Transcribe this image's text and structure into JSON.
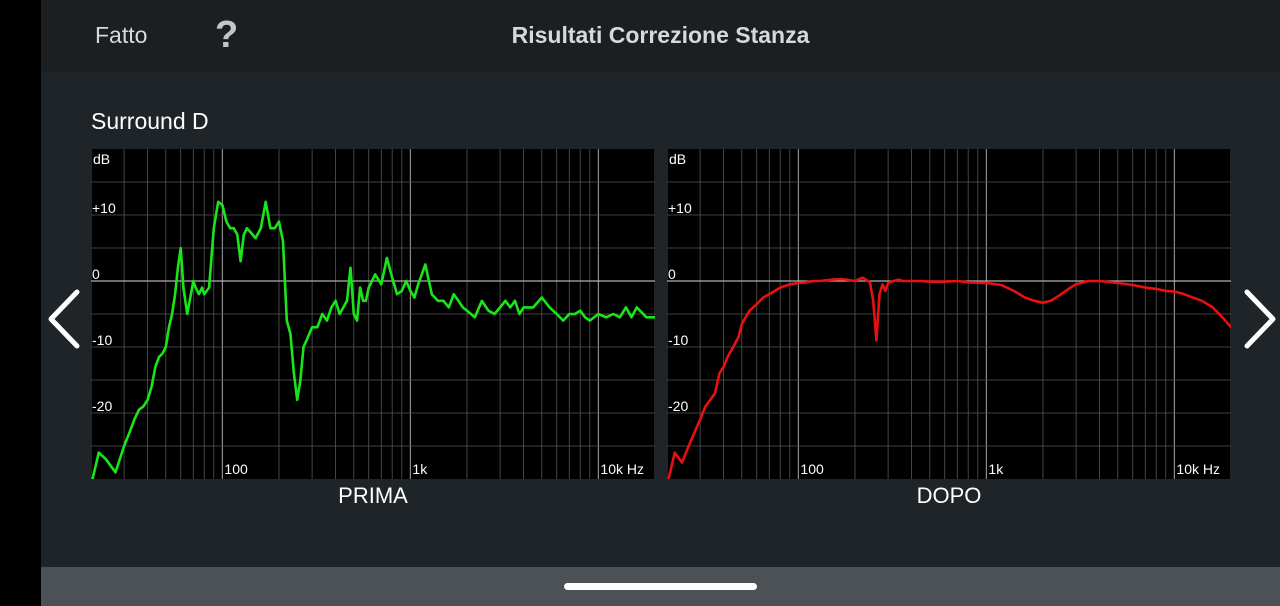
{
  "header": {
    "done_label": "Fatto",
    "help_label": "?",
    "title": "Risultati Correzione Stanza"
  },
  "speaker_name": "Surround D",
  "navigation": {
    "prev_icon": "chevron-left-icon",
    "next_icon": "chevron-right-icon"
  },
  "colors": {
    "background": "#1f2428",
    "header": "#1b1f22",
    "chart_background": "#000000",
    "before_curve": "#19e619",
    "after_curve": "#e81010",
    "grid": "#555555"
  },
  "chart_data": [
    {
      "type": "line",
      "title": "PRIMA",
      "xlabel": "",
      "ylabel": "dB",
      "x_scale": "log",
      "xlim": [
        20,
        20000
      ],
      "ylim": [
        -30,
        20
      ],
      "grid": true,
      "y_ticks": [
        {
          "value": 10,
          "label": "+10"
        },
        {
          "value": 0,
          "label": "0"
        },
        {
          "value": -10,
          "label": "-10"
        },
        {
          "value": -20,
          "label": "-20"
        }
      ],
      "x_ticks": [
        {
          "value": 100,
          "label": "100"
        },
        {
          "value": 1000,
          "label": "1k"
        },
        {
          "value": 10000,
          "label": "10k Hz"
        }
      ],
      "series": [
        {
          "color": "#19e619",
          "x": [
            20,
            22,
            24,
            27,
            30,
            32,
            34,
            36,
            38,
            40,
            42,
            44,
            46,
            48,
            50,
            52,
            54,
            56,
            58,
            60,
            62,
            65,
            68,
            70,
            72,
            75,
            78,
            80,
            85,
            90,
            95,
            100,
            105,
            110,
            115,
            120,
            125,
            130,
            135,
            140,
            150,
            160,
            170,
            180,
            190,
            200,
            210,
            220,
            230,
            240,
            250,
            260,
            270,
            280,
            300,
            320,
            340,
            360,
            380,
            400,
            420,
            440,
            460,
            480,
            500,
            520,
            540,
            560,
            580,
            600,
            650,
            700,
            750,
            800,
            850,
            900,
            950,
            1000,
            1050,
            1100,
            1150,
            1200,
            1300,
            1400,
            1500,
            1600,
            1700,
            1800,
            1900,
            2000,
            2200,
            2400,
            2600,
            2800,
            3000,
            3200,
            3400,
            3600,
            3800,
            4000,
            4500,
            5000,
            5500,
            6000,
            6500,
            7000,
            7500,
            8000,
            8500,
            9000,
            10000,
            11000,
            12000,
            13000,
            14000,
            15000,
            16000,
            18000,
            20000
          ],
          "y": [
            -31,
            -26,
            -27,
            -29,
            -25,
            -23,
            -21,
            -19.5,
            -19,
            -18,
            -16,
            -13,
            -11.5,
            -11,
            -10,
            -7,
            -5,
            -2,
            2,
            5,
            -1,
            -5,
            -2,
            0,
            -1,
            -2,
            -1,
            -2,
            -1,
            8,
            12,
            11.5,
            9,
            8,
            8,
            7,
            3,
            7,
            8,
            7.5,
            6.5,
            8,
            12,
            8,
            8,
            9,
            6,
            -6,
            -8,
            -14,
            -18,
            -15,
            -10,
            -9,
            -7,
            -7,
            -5,
            -6,
            -4,
            -3,
            -5,
            -4,
            -3,
            2,
            -5,
            -6,
            -1,
            -3,
            -3,
            -1,
            1,
            -0.5,
            3.5,
            0.5,
            -2,
            -1.5,
            0,
            -1.5,
            -2.5,
            -0.5,
            1,
            2.5,
            -2,
            -3,
            -3,
            -4,
            -2,
            -3,
            -4,
            -4.5,
            -5.5,
            -3,
            -4.5,
            -5,
            -4,
            -3,
            -4,
            -3,
            -5,
            -4,
            -4,
            -2.5,
            -4,
            -5,
            -6,
            -5,
            -5,
            -4.5,
            -5.5,
            -6,
            -5,
            -5.5,
            -5,
            -5.5,
            -4,
            -5.5,
            -4,
            -5.5,
            -5.5
          ]
        }
      ]
    },
    {
      "type": "line",
      "title": "DOPO",
      "xlabel": "",
      "ylabel": "dB",
      "x_scale": "log",
      "xlim": [
        20,
        20000
      ],
      "ylim": [
        -30,
        20
      ],
      "grid": true,
      "y_ticks": [
        {
          "value": 10,
          "label": "+10"
        },
        {
          "value": 0,
          "label": "0"
        },
        {
          "value": -10,
          "label": "-10"
        },
        {
          "value": -20,
          "label": "-20"
        }
      ],
      "x_ticks": [
        {
          "value": 100,
          "label": "100"
        },
        {
          "value": 1000,
          "label": "1k"
        },
        {
          "value": 10000,
          "label": "10k Hz"
        }
      ],
      "series": [
        {
          "color": "#e81010",
          "x": [
            20,
            22,
            24,
            27,
            30,
            32,
            34,
            36,
            38,
            40,
            42,
            45,
            48,
            50,
            55,
            60,
            65,
            70,
            75,
            80,
            90,
            100,
            110,
            120,
            130,
            150,
            170,
            200,
            220,
            240,
            250,
            260,
            270,
            280,
            290,
            300,
            320,
            340,
            360,
            400,
            450,
            500,
            600,
            700,
            800,
            1000,
            1200,
            1400,
            1600,
            1800,
            2000,
            2200,
            2500,
            2800,
            3000,
            3500,
            4000,
            5000,
            6000,
            7000,
            8000,
            9000,
            10000,
            11000,
            12000,
            14000,
            16000,
            18000,
            20000
          ],
          "y": [
            -31,
            -26,
            -27.5,
            -24,
            -21,
            -19,
            -18,
            -17,
            -14,
            -13,
            -11.5,
            -10,
            -8.5,
            -6.5,
            -4.5,
            -3.5,
            -2.5,
            -2,
            -1.5,
            -1,
            -0.5,
            -0.3,
            -0.2,
            0,
            0,
            0.2,
            0.3,
            0,
            0.5,
            -0.2,
            -3,
            -9,
            -2,
            -0.5,
            -1.5,
            -0.3,
            0,
            0.2,
            0,
            0,
            0,
            -0.1,
            -0.1,
            0,
            -0.2,
            -0.3,
            -0.6,
            -1.5,
            -2.5,
            -3,
            -3.3,
            -3,
            -2,
            -1,
            -0.5,
            0,
            0,
            -0.3,
            -0.6,
            -1,
            -1.2,
            -1.5,
            -1.6,
            -1.9,
            -2.3,
            -3,
            -4,
            -5.5,
            -7
          ]
        }
      ]
    }
  ]
}
